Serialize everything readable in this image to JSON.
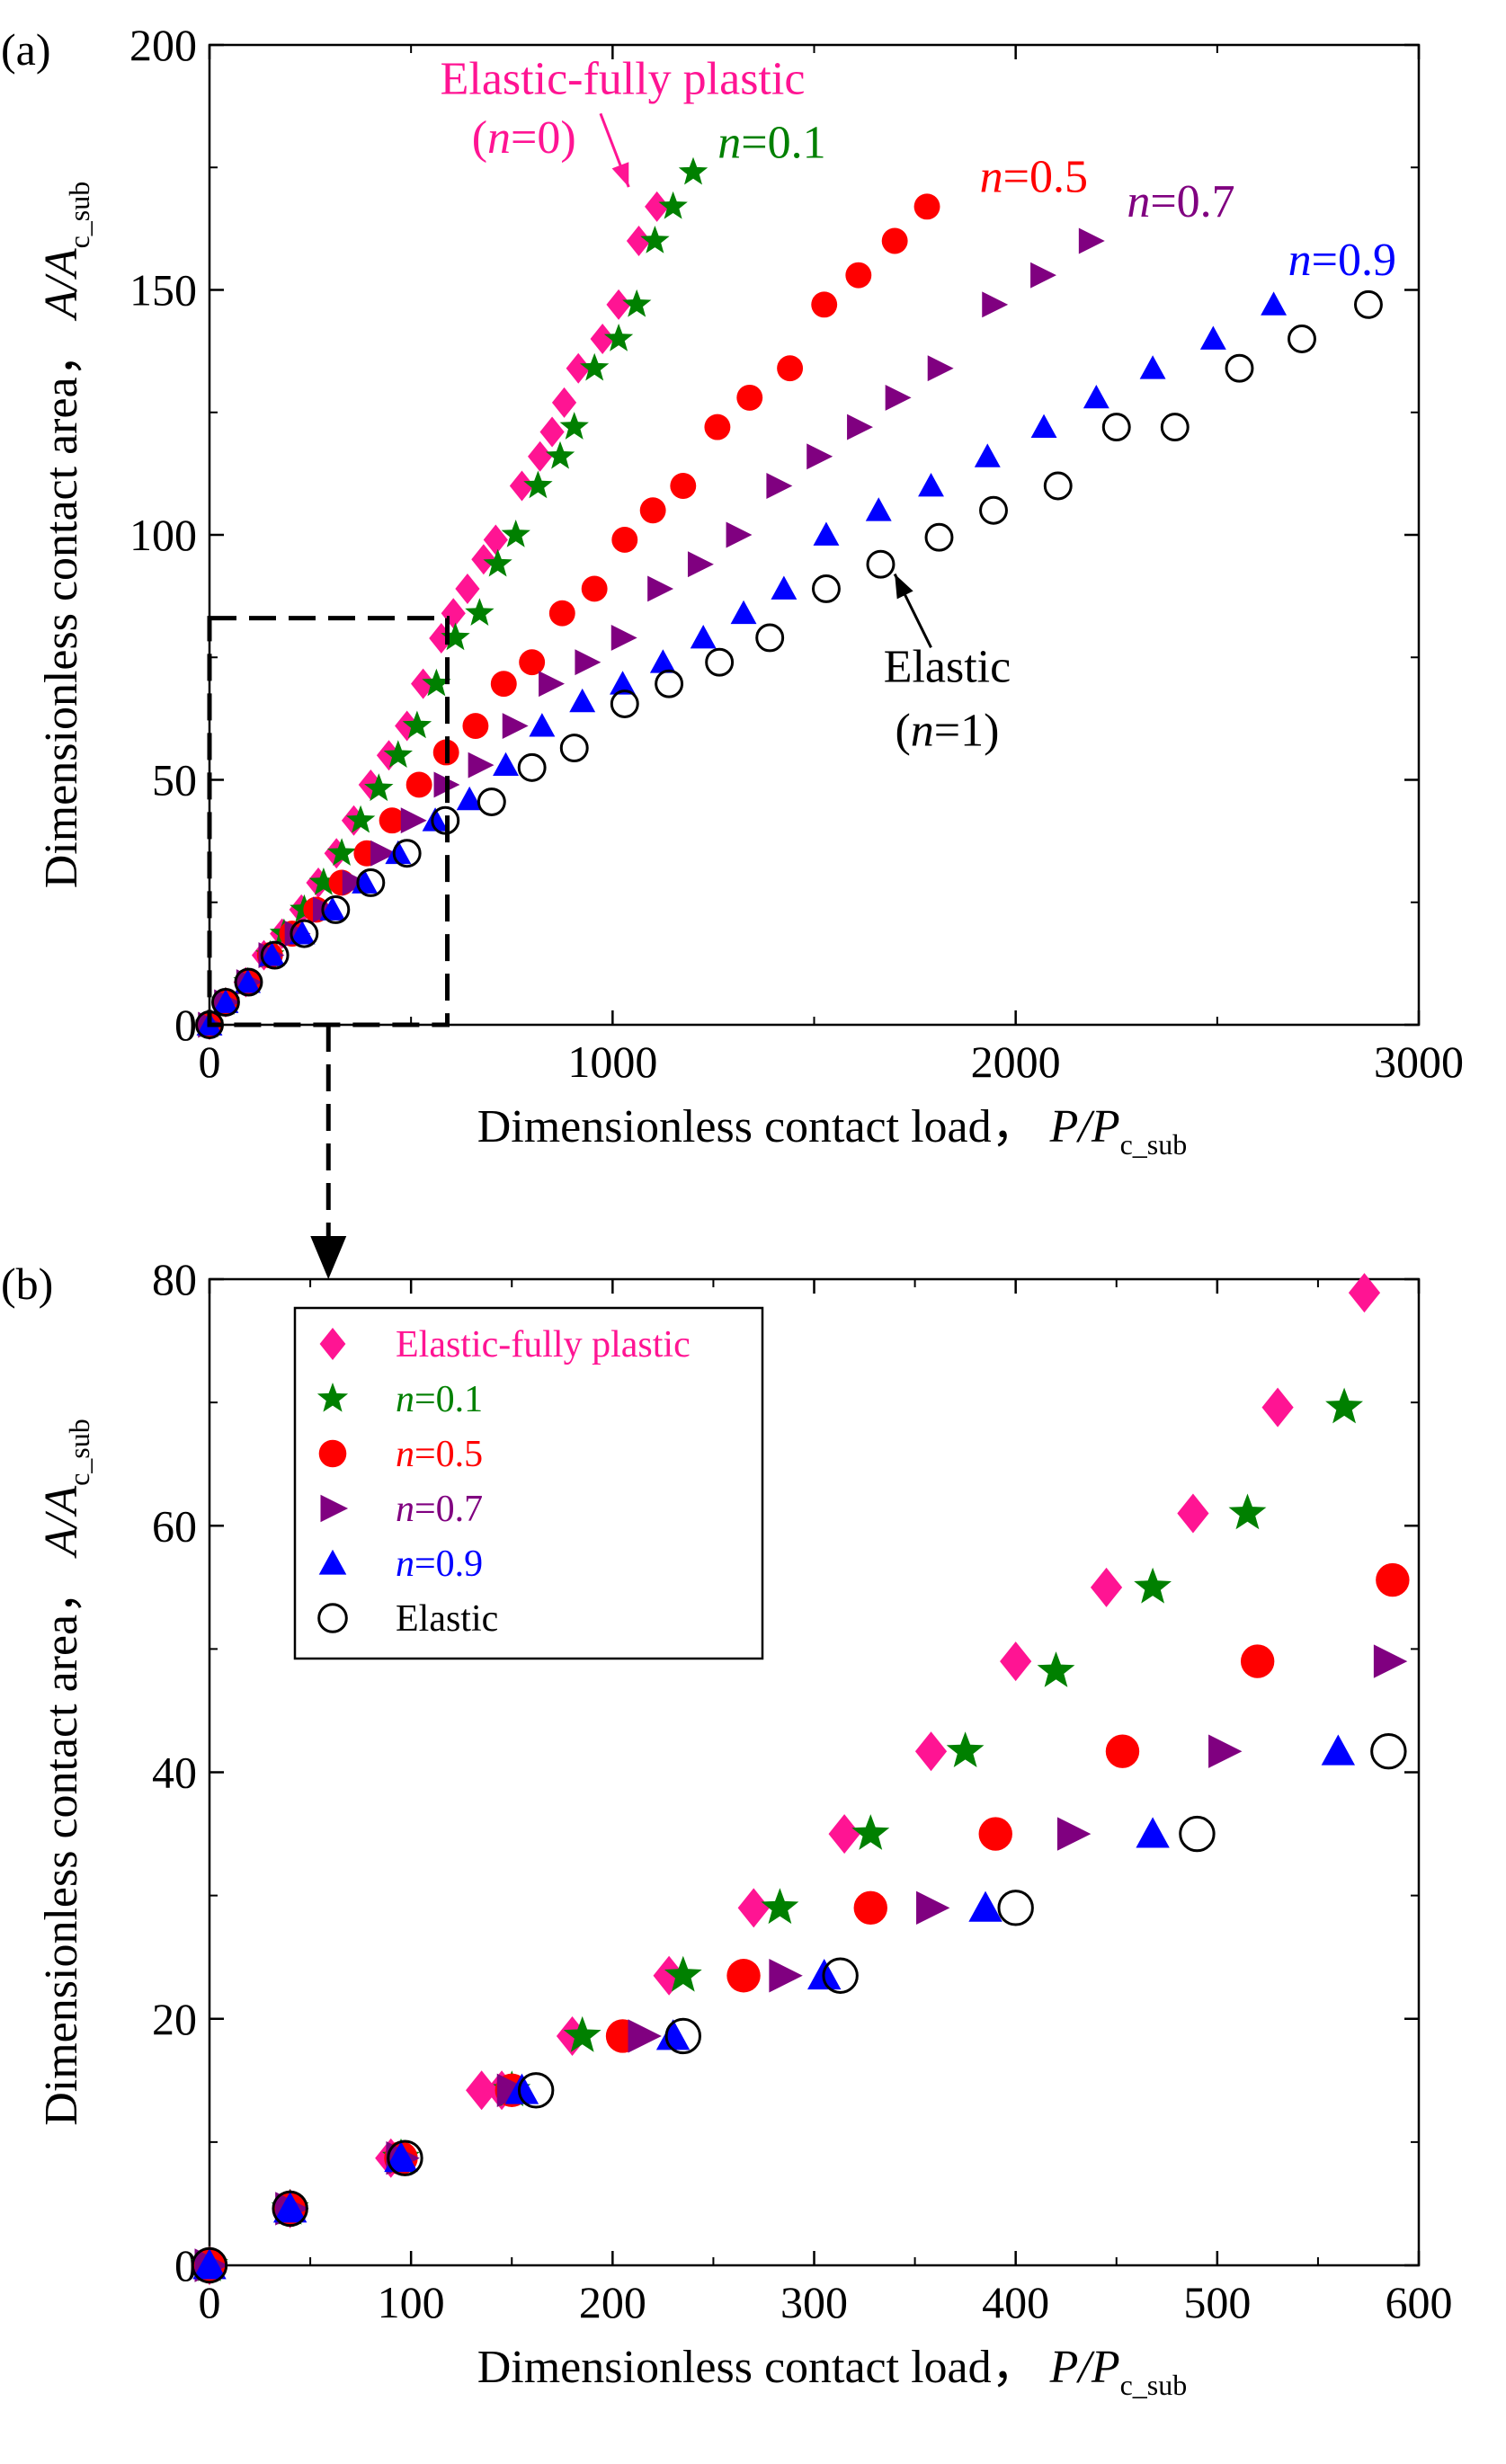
{
  "chart_data": [
    {
      "panel": "(a)",
      "type": "scatter",
      "xlabel": "Dimensionless contact load，",
      "xlabel_symbol": "P/P",
      "xlabel_sub": "c_sub",
      "ylabel": "Dimensionless contact area，",
      "ylabel_symbol": "A/A",
      "ylabel_sub": "c_sub",
      "xlim": [
        0,
        3000
      ],
      "ylim": [
        0,
        200
      ],
      "xticks": [
        0,
        1000,
        2000,
        3000
      ],
      "yticks": [
        0,
        50,
        100,
        150,
        200
      ],
      "zoom_box": {
        "x": [
          0,
          590
        ],
        "y": [
          0,
          83
        ]
      },
      "annotations": [
        {
          "text": "Elastic-fully plastic",
          "color": "#ff1493",
          "x": 1025,
          "y": 190
        },
        {
          "text": "(n=0)",
          "color": "#ff1493",
          "x": 780,
          "y": 178
        },
        {
          "text": "n=0.1",
          "color": "#008000",
          "x": 1395,
          "y": 177
        },
        {
          "text": "n=0.5",
          "color": "#ff0000",
          "x": 2045,
          "y": 170
        },
        {
          "text": "n=0.7",
          "color": "#800080",
          "x": 2410,
          "y": 165
        },
        {
          "text": "n=0.9",
          "color": "#0000ff",
          "x": 2810,
          "y": 153
        },
        {
          "text": "Elastic",
          "color": "#000000",
          "x": 1830,
          "y": 70
        },
        {
          "text": "(n=1)",
          "color": "#000000",
          "x": 1830,
          "y": 57
        }
      ],
      "series": [
        {
          "name": "Elastic-fully plastic",
          "marker": "diamond",
          "color": "#ff1493",
          "x": [
            0,
            40,
            90,
            135,
            180,
            228,
            270,
            315,
            358,
            400,
            445,
            490,
            530,
            575,
            605,
            640,
            680,
            710,
            775,
            820,
            850,
            880,
            915,
            975,
            1015,
            1065,
            1110
          ],
          "y": [
            0,
            4.6,
            8.7,
            14.2,
            18.6,
            23.5,
            29,
            35,
            41.7,
            49,
            55,
            61,
            69.6,
            78.9,
            84,
            89,
            95,
            99,
            110,
            116,
            121,
            127,
            134,
            140,
            147,
            160,
            167
          ]
        },
        {
          "name": "n=0.1",
          "marker": "star",
          "color": "#008000",
          "x": [
            0,
            40,
            95,
            150,
            185,
            235,
            283,
            328,
            375,
            420,
            468,
            515,
            563,
            610,
            670,
            715,
            760,
            815,
            870,
            905,
            955,
            1015,
            1060,
            1105,
            1150,
            1200
          ],
          "y": [
            0,
            4.6,
            8.7,
            14.2,
            18.6,
            23.5,
            29,
            35,
            41.7,
            48.2,
            55,
            61,
            69.6,
            79,
            84,
            94,
            100,
            110,
            116,
            122,
            134,
            140,
            147,
            160,
            167,
            174
          ]
        },
        {
          "name": "n=0.5",
          "marker": "circle",
          "color": "#ff0000",
          "x": [
            0,
            40,
            95,
            150,
            205,
            265,
            328,
            390,
            453,
            520,
            587,
            660,
            730,
            800,
            875,
            955,
            1030,
            1100,
            1175,
            1260,
            1340,
            1440,
            1525,
            1610,
            1700,
            1780
          ],
          "y": [
            0,
            4.6,
            8.7,
            14.2,
            18.6,
            23.5,
            29,
            35,
            41.7,
            49,
            55.6,
            61,
            69.6,
            74,
            84,
            89,
            99,
            105,
            110,
            122,
            128,
            134,
            147,
            153,
            160,
            167
          ]
        },
        {
          "name": "n=0.7",
          "marker": "triangle-right",
          "color": "#800080",
          "x": [
            0,
            40,
            95,
            150,
            215,
            285,
            358,
            428,
            503,
            585,
            670,
            755,
            845,
            935,
            1025,
            1115,
            1215,
            1310,
            1410,
            1510,
            1610,
            1705,
            1810,
            1945,
            2065,
            2185
          ],
          "y": [
            0,
            4.6,
            8.7,
            14.2,
            18.6,
            23.5,
            29,
            35,
            41.7,
            49,
            53,
            61,
            69.6,
            74,
            79,
            89,
            94,
            100,
            110,
            116,
            122,
            128,
            134,
            147,
            153,
            160
          ]
        },
        {
          "name": "n=0.9",
          "marker": "triangle-up",
          "color": "#0000ff",
          "x": [
            0,
            40,
            95,
            155,
            230,
            305,
            385,
            468,
            560,
            645,
            735,
            825,
            925,
            1025,
            1125,
            1225,
            1325,
            1425,
            1530,
            1660,
            1790,
            1930,
            2070,
            2200,
            2340,
            2490,
            2640
          ],
          "y": [
            0,
            4.6,
            8.7,
            14.2,
            18.6,
            23.5,
            29,
            35,
            41.7,
            46,
            53,
            61,
            66,
            69.6,
            74,
            79,
            84,
            89,
            100,
            105,
            110,
            116,
            122,
            128,
            134,
            140,
            147
          ]
        },
        {
          "name": "Elastic",
          "marker": "open-circle",
          "color": "#000000",
          "x": [
            0,
            40,
            97,
            162,
            235,
            313,
            400,
            490,
            585,
            700,
            800,
            905,
            1030,
            1140,
            1265,
            1390,
            1530,
            1665,
            1810,
            1945,
            2105,
            2250,
            2395,
            2555,
            2710,
            2875
          ],
          "y": [
            0,
            4.6,
            8.7,
            14.2,
            18.6,
            23.5,
            29,
            35,
            41.7,
            45.5,
            52.5,
            56.5,
            65.5,
            69.6,
            74,
            79,
            89,
            94,
            99.5,
            105,
            110,
            122,
            122,
            134,
            140,
            147
          ]
        }
      ]
    },
    {
      "panel": "(b)",
      "type": "scatter",
      "xlabel": "Dimensionless contact load，",
      "xlabel_symbol": "P/P",
      "xlabel_sub": "c_sub",
      "ylabel": "Dimensionless contact area，",
      "ylabel_symbol": "A/A",
      "ylabel_sub": "c_sub",
      "xlim": [
        0,
        600
      ],
      "ylim": [
        0,
        80
      ],
      "xticks": [
        0,
        100,
        200,
        300,
        400,
        500,
        600
      ],
      "yticks": [
        0,
        20,
        40,
        60,
        80
      ],
      "legend_position": "top-left",
      "legend": [
        {
          "label": "Elastic-fully plastic",
          "marker": "diamond",
          "color": "#ff1493"
        },
        {
          "label": "n=0.1",
          "marker": "star",
          "color": "#008000"
        },
        {
          "label": "n=0.5",
          "marker": "circle",
          "color": "#ff0000"
        },
        {
          "label": "n=0.7",
          "marker": "triangle-right",
          "color": "#800080"
        },
        {
          "label": "n=0.9",
          "marker": "triangle-up",
          "color": "#0000ff"
        },
        {
          "label": "Elastic",
          "marker": "open-circle",
          "color": "#000000"
        }
      ],
      "series": [
        {
          "name": "Elastic-fully plastic",
          "marker": "diamond",
          "color": "#ff1493",
          "x": [
            0,
            40,
            90,
            135,
            145,
            180,
            228,
            270,
            315,
            358,
            400,
            445,
            488,
            530,
            573
          ],
          "y": [
            0,
            4.6,
            8.7,
            14.2,
            14.2,
            18.6,
            23.5,
            29,
            35,
            41.7,
            49,
            55,
            61,
            69.6,
            78.9
          ]
        },
        {
          "name": "n=0.1",
          "marker": "star",
          "color": "#008000",
          "x": [
            0,
            40,
            95,
            150,
            185,
            235,
            283,
            328,
            375,
            420,
            468,
            515,
            563
          ],
          "y": [
            0,
            4.6,
            8.7,
            14.2,
            18.6,
            23.5,
            29,
            35,
            41.7,
            48.2,
            55,
            61,
            69.6
          ]
        },
        {
          "name": "n=0.5",
          "marker": "circle",
          "color": "#ff0000",
          "x": [
            0,
            40,
            95,
            150,
            205,
            265,
            328,
            390,
            453,
            520,
            587
          ],
          "y": [
            0,
            4.6,
            8.7,
            14.2,
            18.6,
            23.5,
            29,
            35,
            41.7,
            49,
            55.6
          ]
        },
        {
          "name": "n=0.7",
          "marker": "triangle-right",
          "color": "#800080",
          "x": [
            0,
            40,
            95,
            150,
            215,
            285,
            358,
            428,
            503,
            585
          ],
          "y": [
            0,
            4.6,
            8.7,
            14.2,
            18.6,
            23.5,
            29,
            35,
            41.7,
            49
          ]
        },
        {
          "name": "n=0.9",
          "marker": "triangle-up",
          "color": "#0000ff",
          "x": [
            0,
            40,
            95,
            155,
            230,
            305,
            385,
            468,
            560
          ],
          "y": [
            0,
            4.6,
            8.7,
            14.2,
            18.6,
            23.5,
            29,
            35,
            41.7
          ]
        },
        {
          "name": "Elastic",
          "marker": "open-circle",
          "color": "#000000",
          "x": [
            0,
            40,
            97,
            162,
            235,
            313,
            400,
            490,
            585
          ],
          "y": [
            0,
            4.6,
            8.7,
            14.2,
            18.6,
            23.5,
            29,
            35,
            41.7
          ]
        }
      ]
    }
  ]
}
